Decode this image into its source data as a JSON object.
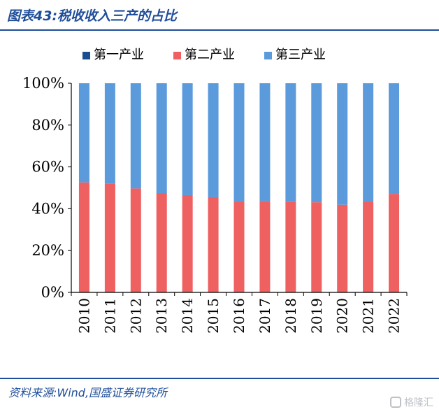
{
  "header": {
    "title": "图表43:税收收入三产的占比"
  },
  "footer": {
    "source": "资料来源:Wind,国盛证券研究所"
  },
  "watermark": {
    "text": "格隆汇"
  },
  "colors": {
    "primary": "#1f4e9a",
    "series1": "#1a4f8f",
    "series2": "#ef6061",
    "series3": "#5b9bdc",
    "axis": "#000000"
  },
  "chart_data": {
    "type": "bar",
    "stacked": true,
    "title": "",
    "xlabel": "",
    "ylabel": "",
    "categories": [
      "2010",
      "2011",
      "2012",
      "2013",
      "2014",
      "2015",
      "2016",
      "2017",
      "2018",
      "2019",
      "2020",
      "2021",
      "2022"
    ],
    "series": [
      {
        "name": "第一产业",
        "color": "#1a4f8f",
        "values": [
          0.1,
          0.1,
          0.1,
          0.1,
          0.1,
          0.1,
          0.1,
          0.1,
          0.1,
          0.1,
          0.1,
          0.1,
          0.1
        ]
      },
      {
        "name": "第二产业",
        "color": "#ef6061",
        "values": [
          52.5,
          52,
          49.6,
          47.4,
          46.4,
          45.4,
          43.4,
          43.6,
          43.1,
          43,
          41.8,
          43.2,
          47
        ]
      },
      {
        "name": "第三产业",
        "color": "#5b9bdc",
        "values": [
          47.4,
          47.9,
          50.3,
          52.5,
          53.5,
          54.5,
          56.5,
          56.3,
          56.8,
          56.9,
          58.1,
          56.7,
          52.9
        ]
      }
    ],
    "ylim": [
      0,
      100
    ],
    "yticks": [
      "0%",
      "20%",
      "40%",
      "60%",
      "80%",
      "100%"
    ],
    "grid": false,
    "legend": "top"
  }
}
